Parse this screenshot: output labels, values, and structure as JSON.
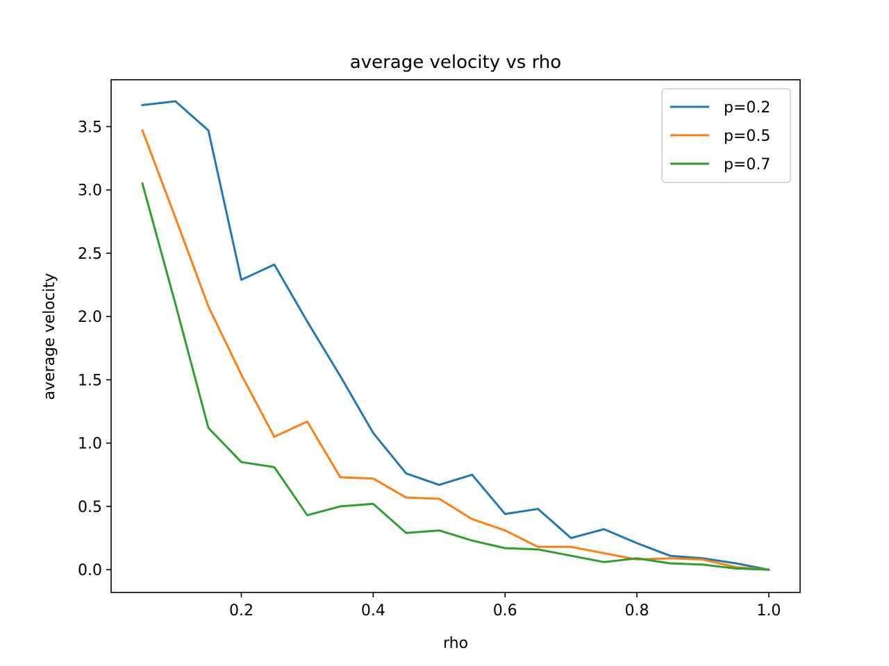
{
  "chart_data": {
    "type": "line",
    "title": "average velocity vs rho",
    "xlabel": "rho",
    "ylabel": "average velocity",
    "xlim": [
      0.0025,
      1.0475
    ],
    "ylim": [
      -0.18,
      3.87
    ],
    "xticks": [
      0.2,
      0.4,
      0.6,
      0.8,
      1.0
    ],
    "xtick_labels": [
      "0.2",
      "0.4",
      "0.6",
      "0.8",
      "1.0"
    ],
    "yticks": [
      0.0,
      0.5,
      1.0,
      1.5,
      2.0,
      2.5,
      3.0,
      3.5
    ],
    "ytick_labels": [
      "0.0",
      "0.5",
      "1.0",
      "1.5",
      "2.0",
      "2.5",
      "3.0",
      "3.5"
    ],
    "grid": false,
    "legend_position": "top-right",
    "x": [
      0.05,
      0.1,
      0.15,
      0.2,
      0.25,
      0.3,
      0.35,
      0.4,
      0.45,
      0.5,
      0.55,
      0.6,
      0.65,
      0.7,
      0.75,
      0.8,
      0.85,
      0.9,
      0.95,
      1.0
    ],
    "series": [
      {
        "name": "p=0.2",
        "color": "#1f77b4",
        "values": [
          3.67,
          3.7,
          3.47,
          2.29,
          2.41,
          1.96,
          1.53,
          1.08,
          0.76,
          0.67,
          0.75,
          0.44,
          0.48,
          0.25,
          0.32,
          0.21,
          0.11,
          0.09,
          0.05,
          0.0
        ]
      },
      {
        "name": "p=0.5",
        "color": "#ff7f0e",
        "values": [
          3.47,
          2.78,
          2.08,
          1.54,
          1.05,
          1.17,
          0.73,
          0.72,
          0.57,
          0.56,
          0.4,
          0.31,
          0.18,
          0.18,
          0.13,
          0.08,
          0.09,
          0.08,
          0.02,
          0.0
        ]
      },
      {
        "name": "p=0.7",
        "color": "#2ca02c",
        "values": [
          3.05,
          2.1,
          1.12,
          0.85,
          0.81,
          0.43,
          0.5,
          0.52,
          0.29,
          0.31,
          0.23,
          0.17,
          0.16,
          0.11,
          0.06,
          0.09,
          0.05,
          0.04,
          0.01,
          0.0
        ]
      }
    ]
  }
}
